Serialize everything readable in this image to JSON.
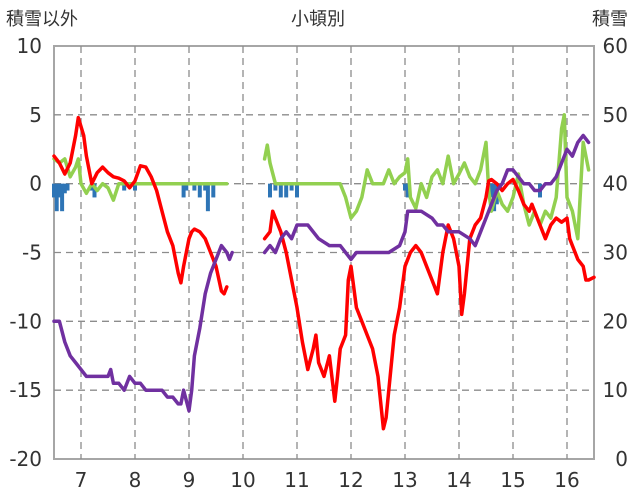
{
  "chart_data": {
    "type": "line",
    "title": "小頓別",
    "left_axis_label": "積雪以外",
    "right_axis_label": "積雪",
    "x_ticks": [
      "7",
      "8",
      "9",
      "10",
      "11",
      "12",
      "13",
      "14",
      "15",
      "16"
    ],
    "y_left_ticks": [
      "10",
      "5",
      "0",
      "-5",
      "-10",
      "-15",
      "-20"
    ],
    "y_right_ticks": [
      "60",
      "50",
      "40",
      "30",
      "20",
      "10",
      "0"
    ],
    "ylim_left": [
      -20,
      10
    ],
    "ylim_right": [
      0,
      60
    ],
    "xlim": [
      6.5,
      16.5
    ],
    "grid": "dashed",
    "series": [
      {
        "axis": "left",
        "kind": "line",
        "color": "#ff0000",
        "points": [
          [
            6.5,
            2
          ],
          [
            6.6,
            1.5
          ],
          [
            6.7,
            0.7
          ],
          [
            6.8,
            1.5
          ],
          [
            6.9,
            3.5
          ],
          [
            6.95,
            4.8
          ],
          [
            7.05,
            3.5
          ],
          [
            7.1,
            2
          ],
          [
            7.2,
            0
          ],
          [
            7.3,
            0.8
          ],
          [
            7.4,
            1.2
          ],
          [
            7.5,
            0.8
          ],
          [
            7.6,
            0.5
          ],
          [
            7.7,
            0.4
          ],
          [
            7.8,
            0.2
          ],
          [
            7.9,
            -0.3
          ],
          [
            8.0,
            0.2
          ],
          [
            8.1,
            1.3
          ],
          [
            8.2,
            1.2
          ],
          [
            8.3,
            0.5
          ],
          [
            8.4,
            -0.5
          ],
          [
            8.5,
            -2
          ],
          [
            8.6,
            -3.5
          ],
          [
            8.7,
            -4.5
          ],
          [
            8.8,
            -6.5
          ],
          [
            8.85,
            -7.2
          ],
          [
            8.9,
            -6
          ],
          [
            9.0,
            -4
          ],
          [
            9.05,
            -3.5
          ],
          [
            9.1,
            -3.3
          ],
          [
            9.2,
            -3.5
          ],
          [
            9.3,
            -4
          ],
          [
            9.4,
            -5
          ],
          [
            9.5,
            -6
          ],
          [
            9.6,
            -7.8
          ],
          [
            9.65,
            -8
          ],
          [
            9.7,
            -7.5
          ]
        ]
      },
      {
        "axis": "left",
        "kind": "line",
        "color": "#ff0000",
        "points": [
          [
            10.4,
            -4
          ],
          [
            10.5,
            -3.5
          ],
          [
            10.55,
            -2
          ],
          [
            10.6,
            -2.5
          ],
          [
            10.7,
            -3.5
          ],
          [
            10.8,
            -5
          ],
          [
            10.9,
            -7
          ],
          [
            11.0,
            -9
          ],
          [
            11.1,
            -11.5
          ],
          [
            11.2,
            -13.5
          ],
          [
            11.3,
            -12
          ],
          [
            11.35,
            -11
          ],
          [
            11.4,
            -13
          ],
          [
            11.5,
            -14
          ],
          [
            11.6,
            -12.5
          ],
          [
            11.7,
            -15.8
          ],
          [
            11.75,
            -14
          ],
          [
            11.8,
            -12
          ],
          [
            11.9,
            -11
          ],
          [
            11.95,
            -7
          ],
          [
            12.0,
            -6
          ],
          [
            12.1,
            -9
          ],
          [
            12.2,
            -10
          ],
          [
            12.3,
            -11
          ],
          [
            12.4,
            -12
          ],
          [
            12.5,
            -14
          ],
          [
            12.6,
            -17.8
          ],
          [
            12.65,
            -17
          ],
          [
            12.7,
            -15
          ],
          [
            12.8,
            -11
          ],
          [
            12.9,
            -9
          ],
          [
            13.0,
            -6
          ],
          [
            13.1,
            -5
          ],
          [
            13.2,
            -4.5
          ],
          [
            13.3,
            -5
          ],
          [
            13.4,
            -6
          ],
          [
            13.5,
            -7
          ],
          [
            13.6,
            -8
          ],
          [
            13.7,
            -5
          ],
          [
            13.8,
            -3
          ],
          [
            13.9,
            -4
          ],
          [
            14.0,
            -6
          ],
          [
            14.05,
            -9.5
          ],
          [
            14.1,
            -8
          ],
          [
            14.2,
            -4
          ],
          [
            14.3,
            -3
          ],
          [
            14.4,
            -2.5
          ],
          [
            14.5,
            -1
          ],
          [
            14.55,
            0.2
          ],
          [
            14.6,
            0.3
          ],
          [
            14.7,
            0
          ],
          [
            14.8,
            -0.5
          ],
          [
            14.9,
            0
          ],
          [
            15.0,
            0.3
          ],
          [
            15.1,
            -0.5
          ],
          [
            15.2,
            -1.5
          ],
          [
            15.3,
            -2
          ],
          [
            15.35,
            -1.5
          ],
          [
            15.4,
            -2
          ],
          [
            15.5,
            -3
          ],
          [
            15.6,
            -4
          ],
          [
            15.7,
            -3
          ],
          [
            15.8,
            -2.5
          ],
          [
            15.9,
            -2.8
          ],
          [
            16.0,
            -2.5
          ],
          [
            16.05,
            -4
          ],
          [
            16.1,
            -4.5
          ],
          [
            16.2,
            -5.5
          ],
          [
            16.3,
            -6
          ],
          [
            16.35,
            -7
          ],
          [
            16.4,
            -7
          ],
          [
            16.5,
            -6.8
          ]
        ]
      },
      {
        "axis": "right",
        "kind": "line",
        "color": "#7030a0",
        "points": [
          [
            6.5,
            20
          ],
          [
            6.6,
            20
          ],
          [
            6.7,
            17
          ],
          [
            6.8,
            15
          ],
          [
            6.9,
            14
          ],
          [
            7.0,
            13
          ],
          [
            7.1,
            12
          ],
          [
            7.2,
            12
          ],
          [
            7.4,
            12
          ],
          [
            7.5,
            12
          ],
          [
            7.55,
            13
          ],
          [
            7.6,
            11
          ],
          [
            7.7,
            11
          ],
          [
            7.8,
            10
          ],
          [
            7.9,
            12
          ],
          [
            8.0,
            11
          ],
          [
            8.1,
            11
          ],
          [
            8.2,
            10
          ],
          [
            8.3,
            10
          ],
          [
            8.4,
            10
          ],
          [
            8.5,
            10
          ],
          [
            8.6,
            9
          ],
          [
            8.7,
            9
          ],
          [
            8.8,
            8
          ],
          [
            8.85,
            8
          ],
          [
            8.9,
            10
          ],
          [
            9.0,
            7
          ],
          [
            9.05,
            10
          ],
          [
            9.1,
            15
          ],
          [
            9.2,
            19
          ],
          [
            9.3,
            24
          ],
          [
            9.4,
            27
          ],
          [
            9.5,
            29
          ],
          [
            9.6,
            31
          ],
          [
            9.7,
            30
          ],
          [
            9.75,
            29
          ],
          [
            9.8,
            30
          ]
        ]
      },
      {
        "axis": "right",
        "kind": "line",
        "color": "#7030a0",
        "points": [
          [
            10.4,
            30
          ],
          [
            10.5,
            31
          ],
          [
            10.6,
            30
          ],
          [
            10.7,
            32
          ],
          [
            10.8,
            33
          ],
          [
            10.9,
            32
          ],
          [
            11.0,
            34
          ],
          [
            11.2,
            34
          ],
          [
            11.4,
            32
          ],
          [
            11.6,
            31
          ],
          [
            11.8,
            31
          ],
          [
            12.0,
            29
          ],
          [
            12.1,
            30
          ],
          [
            12.3,
            30
          ],
          [
            12.5,
            30
          ],
          [
            12.7,
            30
          ],
          [
            12.9,
            31
          ],
          [
            13.0,
            33
          ],
          [
            13.05,
            36
          ],
          [
            13.1,
            36
          ],
          [
            13.2,
            36
          ],
          [
            13.3,
            36
          ],
          [
            13.5,
            35
          ],
          [
            13.6,
            34
          ],
          [
            13.7,
            34
          ],
          [
            13.8,
            33
          ],
          [
            14.0,
            33
          ],
          [
            14.2,
            32
          ],
          [
            14.3,
            31
          ],
          [
            14.4,
            33
          ],
          [
            14.5,
            35
          ],
          [
            14.6,
            37
          ],
          [
            14.7,
            39
          ],
          [
            14.8,
            40
          ],
          [
            14.9,
            42
          ],
          [
            15.0,
            42
          ],
          [
            15.1,
            41
          ],
          [
            15.2,
            40
          ],
          [
            15.3,
            40
          ],
          [
            15.4,
            39
          ],
          [
            15.5,
            39
          ],
          [
            15.6,
            40
          ],
          [
            15.7,
            40
          ],
          [
            15.8,
            41
          ],
          [
            15.9,
            43
          ],
          [
            16.0,
            45
          ],
          [
            16.1,
            44
          ],
          [
            16.2,
            46
          ],
          [
            16.3,
            47
          ],
          [
            16.4,
            46
          ]
        ]
      },
      {
        "axis": "left",
        "kind": "line",
        "color": "#92d050",
        "points": [
          [
            6.5,
            1.8
          ],
          [
            6.6,
            1.5
          ],
          [
            6.7,
            1.8
          ],
          [
            6.8,
            0.5
          ],
          [
            6.9,
            1.2
          ],
          [
            6.95,
            1.8
          ],
          [
            7.0,
            0
          ],
          [
            7.1,
            -0.7
          ],
          [
            7.2,
            0
          ],
          [
            7.3,
            -0.5
          ],
          [
            7.4,
            0
          ],
          [
            7.5,
            -0.3
          ],
          [
            7.6,
            -1.2
          ],
          [
            7.7,
            0
          ],
          [
            9.7,
            0
          ]
        ]
      },
      {
        "axis": "left",
        "kind": "line",
        "color": "#92d050",
        "points": [
          [
            10.4,
            1.8
          ],
          [
            10.45,
            2.8
          ],
          [
            10.5,
            1.5
          ],
          [
            10.6,
            0
          ],
          [
            11.8,
            0
          ],
          [
            11.9,
            -1
          ],
          [
            12.0,
            -2.5
          ],
          [
            12.1,
            -2
          ],
          [
            12.2,
            -1
          ],
          [
            12.3,
            1
          ],
          [
            12.4,
            0
          ],
          [
            12.6,
            0
          ],
          [
            12.7,
            1
          ],
          [
            12.8,
            0
          ],
          [
            12.9,
            0.5
          ],
          [
            13.0,
            0.8
          ],
          [
            13.05,
            1.8
          ],
          [
            13.1,
            -1
          ],
          [
            13.2,
            -1.8
          ],
          [
            13.3,
            0
          ],
          [
            13.4,
            -1
          ],
          [
            13.5,
            0.5
          ],
          [
            13.6,
            1
          ],
          [
            13.7,
            0
          ],
          [
            13.8,
            2
          ],
          [
            13.9,
            0
          ],
          [
            14.0,
            0.7
          ],
          [
            14.1,
            1.5
          ],
          [
            14.2,
            0.5
          ],
          [
            14.3,
            0
          ],
          [
            14.4,
            1
          ],
          [
            14.5,
            3
          ],
          [
            14.55,
            -0.5
          ],
          [
            14.6,
            -2
          ],
          [
            14.7,
            -0.5
          ],
          [
            14.8,
            -1.5
          ],
          [
            14.9,
            -2
          ],
          [
            15.0,
            -1
          ],
          [
            15.1,
            0.7
          ],
          [
            15.2,
            -1.5
          ],
          [
            15.3,
            -3
          ],
          [
            15.4,
            -2
          ],
          [
            15.5,
            -3
          ],
          [
            15.6,
            -2
          ],
          [
            15.7,
            -2.5
          ],
          [
            15.8,
            -1
          ],
          [
            15.9,
            4
          ],
          [
            15.95,
            5
          ],
          [
            16.0,
            -1
          ],
          [
            16.1,
            -2
          ],
          [
            16.2,
            -4
          ],
          [
            16.3,
            3
          ],
          [
            16.4,
            1
          ]
        ]
      },
      {
        "axis": "left",
        "kind": "bars",
        "color": "#2e75b6",
        "points": [
          [
            6.5,
            -1
          ],
          [
            6.55,
            -2
          ],
          [
            6.6,
            -1
          ],
          [
            6.65,
            -2
          ],
          [
            6.7,
            -0.7
          ],
          [
            6.75,
            -0.5
          ],
          [
            7.2,
            -0.5
          ],
          [
            7.25,
            -1
          ],
          [
            7.8,
            -0.5
          ],
          [
            8.0,
            -0.5
          ],
          [
            8.9,
            -1
          ],
          [
            8.95,
            -0.5
          ],
          [
            9.1,
            -0.5
          ],
          [
            9.2,
            -1
          ],
          [
            9.3,
            -0.5
          ],
          [
            9.35,
            -2
          ],
          [
            9.45,
            -1
          ],
          [
            10.5,
            -1
          ],
          [
            10.6,
            -0.5
          ],
          [
            10.7,
            -1
          ],
          [
            10.8,
            -1
          ],
          [
            10.9,
            -0.5
          ],
          [
            11.0,
            -1
          ],
          [
            13.0,
            -0.5
          ],
          [
            13.05,
            -1
          ],
          [
            14.6,
            -1
          ],
          [
            14.65,
            -2
          ],
          [
            14.7,
            -1.5
          ],
          [
            15.5,
            -1
          ]
        ]
      }
    ]
  }
}
